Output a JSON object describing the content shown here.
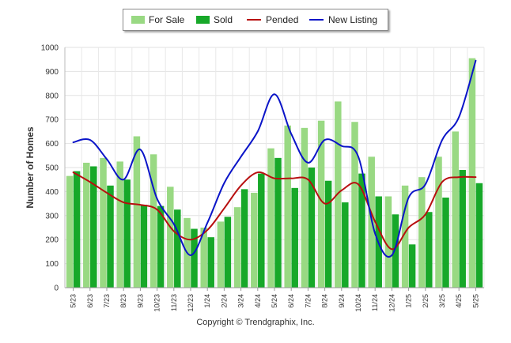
{
  "chart_data": {
    "type": "bar",
    "categories": [
      "5/23",
      "6/23",
      "7/23",
      "8/23",
      "9/23",
      "10/23",
      "11/23",
      "12/23",
      "1/24",
      "2/24",
      "3/24",
      "4/24",
      "5/24",
      "6/24",
      "7/24",
      "8/24",
      "9/24",
      "10/24",
      "11/24",
      "12/24",
      "1/25",
      "2/25",
      "3/25",
      "4/25",
      "5/25"
    ],
    "series": [
      {
        "name": "For Sale",
        "type": "bar",
        "color": "#99d983",
        "values": [
          465,
          520,
          540,
          525,
          630,
          555,
          420,
          290,
          250,
          275,
          335,
          395,
          580,
          675,
          665,
          695,
          775,
          690,
          545,
          380,
          425,
          460,
          545,
          650,
          955
        ]
      },
      {
        "name": "Sold",
        "type": "bar",
        "color": "#17a829",
        "values": [
          485,
          505,
          425,
          450,
          345,
          340,
          325,
          245,
          210,
          295,
          410,
          475,
          540,
          415,
          500,
          445,
          355,
          475,
          380,
          305,
          180,
          315,
          375,
          490,
          435
        ]
      },
      {
        "name": "Pended",
        "type": "line",
        "color": "#b80f0f",
        "values": [
          480,
          440,
          395,
          355,
          345,
          325,
          235,
          200,
          240,
          330,
          425,
          480,
          455,
          455,
          450,
          350,
          405,
          430,
          275,
          160,
          250,
          305,
          440,
          460,
          460
        ]
      },
      {
        "name": "New Listing",
        "type": "line",
        "color": "#0a14c8",
        "values": [
          605,
          615,
          535,
          450,
          575,
          370,
          265,
          135,
          270,
          435,
          545,
          650,
          805,
          640,
          520,
          615,
          590,
          545,
          225,
          135,
          375,
          430,
          615,
          710,
          945
        ]
      }
    ],
    "ylabel": "Number of Homes",
    "xlabel": "",
    "title": "",
    "ylim": [
      0,
      1000
    ],
    "yticks": [
      0,
      100,
      200,
      300,
      400,
      500,
      600,
      700,
      800,
      900,
      1000
    ],
    "grid": true,
    "legend_position": "top"
  },
  "footer": {
    "copyright": "Copyright © Trendgraphix, Inc."
  }
}
